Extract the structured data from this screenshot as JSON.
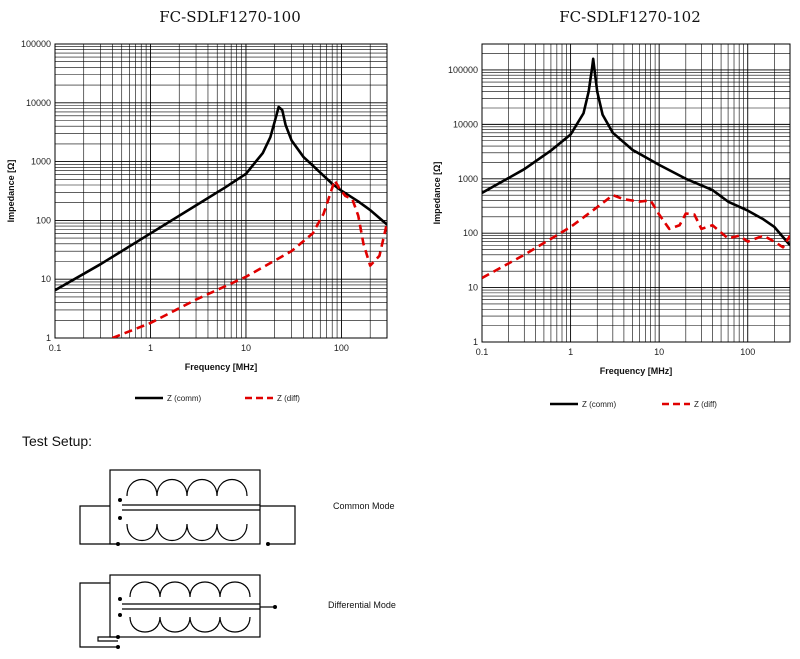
{
  "charts_meta": [
    {
      "title": "FC-SDLF1270-100"
    },
    {
      "title": "FC-SDLF1270-102"
    }
  ],
  "chart_data": [
    {
      "type": "line",
      "title": "FC-SDLF1270-100",
      "xlabel": "Frequency [MHz]",
      "ylabel": "Impedance [Ω]",
      "xscale": "log",
      "yscale": "log",
      "xlim": [
        0.1,
        300
      ],
      "ylim": [
        1,
        100000
      ],
      "x_ticks": [
        "0.1",
        "1",
        "10",
        "100"
      ],
      "y_ticks": [
        "1",
        "10",
        "100",
        "1000",
        "10000",
        "100000"
      ],
      "grid": true,
      "legend": "bottom",
      "series": [
        {
          "name": "Z (comm)",
          "color": "#000000",
          "style": "solid",
          "points": [
            [
              0.1,
              6.5
            ],
            [
              0.3,
              18
            ],
            [
              1,
              60
            ],
            [
              3,
              180
            ],
            [
              6,
              360
            ],
            [
              10,
              620
            ],
            [
              15,
              1400
            ],
            [
              18,
              2600
            ],
            [
              20,
              4800
            ],
            [
              22,
              8500
            ],
            [
              24,
              7500
            ],
            [
              26,
              4200
            ],
            [
              30,
              2300
            ],
            [
              40,
              1200
            ],
            [
              60,
              650
            ],
            [
              80,
              420
            ],
            [
              100,
              320
            ],
            [
              150,
              210
            ],
            [
              200,
              150
            ],
            [
              300,
              85
            ]
          ]
        },
        {
          "name": "Z (diff)",
          "color": "#e00000",
          "style": "dashed",
          "points": [
            [
              0.4,
              1
            ],
            [
              1,
              1.8
            ],
            [
              3,
              4.5
            ],
            [
              10,
              11
            ],
            [
              30,
              30
            ],
            [
              50,
              60
            ],
            [
              65,
              130
            ],
            [
              75,
              260
            ],
            [
              85,
              480
            ],
            [
              95,
              350
            ],
            [
              110,
              260
            ],
            [
              130,
              230
            ],
            [
              150,
              120
            ],
            [
              170,
              40
            ],
            [
              200,
              17
            ],
            [
              250,
              25
            ],
            [
              300,
              90
            ]
          ]
        }
      ]
    },
    {
      "type": "line",
      "title": "FC-SDLF1270-102",
      "xlabel": "Frequency [MHz]",
      "ylabel": "Impedance [Ω]",
      "xscale": "log",
      "yscale": "log",
      "xlim": [
        0.1,
        300
      ],
      "ylim": [
        1,
        300000
      ],
      "x_ticks": [
        "0.1",
        "1",
        "10",
        "100"
      ],
      "y_ticks": [
        "1",
        "10",
        "100",
        "1000",
        "10000",
        "100000"
      ],
      "grid": true,
      "legend": "bottom",
      "series": [
        {
          "name": "Z (comm)",
          "color": "#000000",
          "style": "solid",
          "points": [
            [
              0.1,
              550
            ],
            [
              0.3,
              1500
            ],
            [
              0.6,
              3300
            ],
            [
              1,
              6500
            ],
            [
              1.4,
              16000
            ],
            [
              1.6,
              40000
            ],
            [
              1.75,
              110000
            ],
            [
              1.8,
              160000
            ],
            [
              1.85,
              110000
            ],
            [
              2,
              40000
            ],
            [
              2.3,
              15000
            ],
            [
              3,
              7000
            ],
            [
              5,
              3400
            ],
            [
              10,
              1800
            ],
            [
              20,
              1000
            ],
            [
              40,
              620
            ],
            [
              60,
              380
            ],
            [
              100,
              260
            ],
            [
              150,
              180
            ],
            [
              200,
              130
            ],
            [
              300,
              60
            ]
          ]
        },
        {
          "name": "Z (diff)",
          "color": "#e00000",
          "style": "dashed",
          "points": [
            [
              0.1,
              15
            ],
            [
              0.3,
              40
            ],
            [
              1,
              130
            ],
            [
              2,
              300
            ],
            [
              3,
              500
            ],
            [
              4,
              420
            ],
            [
              6,
              380
            ],
            [
              8,
              400
            ],
            [
              10,
              220
            ],
            [
              13,
              120
            ],
            [
              17,
              140
            ],
            [
              20,
              230
            ],
            [
              25,
              220
            ],
            [
              30,
              120
            ],
            [
              40,
              140
            ],
            [
              60,
              80
            ],
            [
              80,
              90
            ],
            [
              100,
              70
            ],
            [
              150,
              90
            ],
            [
              200,
              70
            ],
            [
              250,
              55
            ],
            [
              300,
              90
            ]
          ]
        }
      ]
    }
  ],
  "test_setup": {
    "heading": "Test Setup:",
    "common_mode_label": "Common Mode",
    "differential_mode_label": "Differential Mode"
  }
}
